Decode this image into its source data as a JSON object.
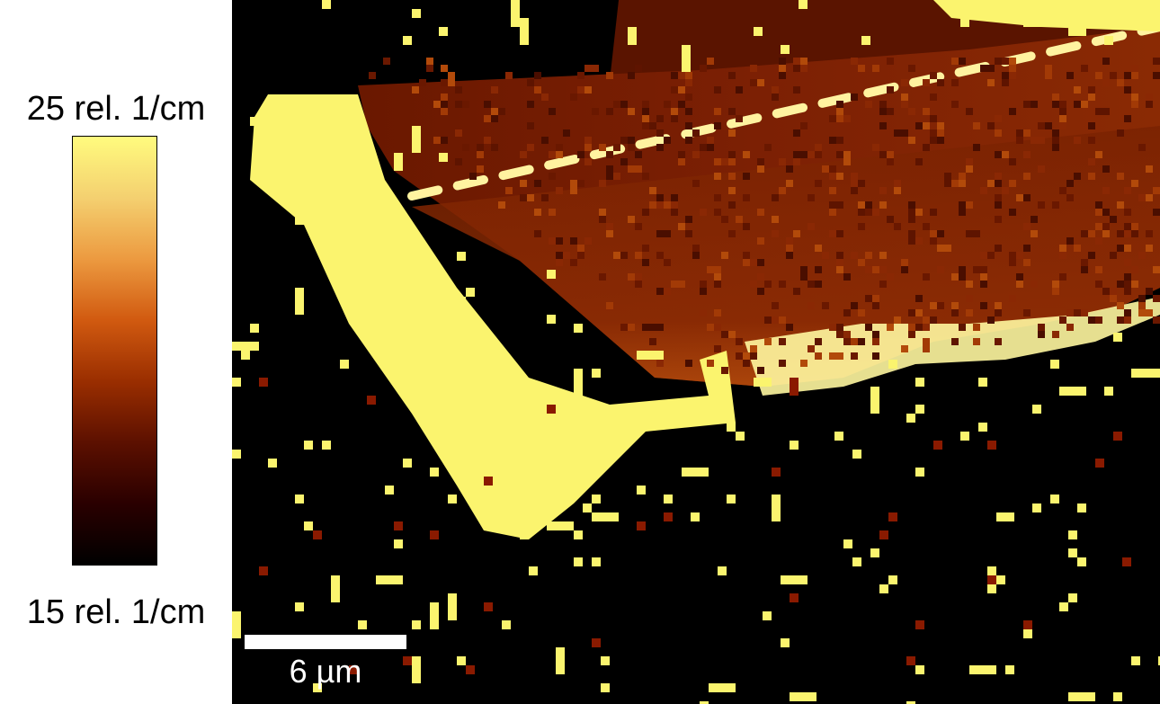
{
  "colorbar": {
    "max_label": "25 rel. 1/cm",
    "min_label": "15 rel. 1/cm",
    "colors": [
      "#000000",
      "#2a0000",
      "#5c1000",
      "#9a2e00",
      "#d15a10",
      "#ec9a40",
      "#f4d070",
      "#fffb7e"
    ]
  },
  "scale_bar": {
    "label": "6 µm"
  },
  "colors": {
    "background": "#000000",
    "saturated": "#fbf46e",
    "sample_dark": "#6a1800",
    "sample_mid": "#9c3604",
    "sample_bright": "#c85a10"
  }
}
